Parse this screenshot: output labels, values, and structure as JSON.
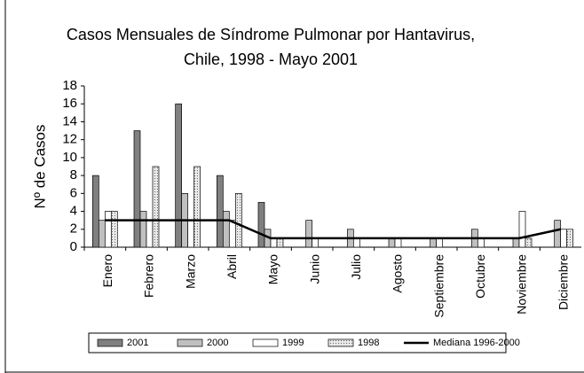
{
  "chart_data": {
    "type": "bar",
    "title": [
      "Casos Mensuales  de Síndrome Pulmonar por Hantavirus,",
      "Chile, 1998 - Mayo 2001"
    ],
    "y_label": "Nº de Casos",
    "categories": [
      "Enero",
      "Febrero",
      "Marzo",
      "Abril",
      "Mayo",
      "Junio",
      "Julio",
      "Agosto",
      "Septiembre",
      "Octubre",
      "Noviembre",
      "Diciembre"
    ],
    "series": [
      {
        "name": "2001",
        "color": "#808080",
        "values": [
          8,
          13,
          16,
          8,
          5,
          null,
          null,
          null,
          null,
          null,
          null,
          null
        ]
      },
      {
        "name": "2000",
        "color": "#c0c0c0",
        "values": [
          3,
          4,
          6,
          4,
          2,
          3,
          2,
          1,
          1,
          2,
          1,
          3
        ]
      },
      {
        "name": "1999",
        "color": "#ffffff",
        "values": [
          4,
          3,
          3,
          3,
          1,
          1,
          1,
          1,
          1,
          1,
          4,
          2
        ]
      },
      {
        "name": "1998",
        "color": "#e8e8e8",
        "values": [
          4,
          9,
          9,
          6,
          1,
          0,
          0,
          0,
          0,
          0,
          1,
          2
        ]
      },
      {
        "name": "Mediana 1996-2000",
        "type": "line",
        "color": "#000000",
        "values": [
          3,
          3,
          3,
          3,
          1,
          1,
          1,
          1,
          1,
          1,
          1,
          2
        ]
      }
    ],
    "ylim": [
      0,
      18
    ],
    "yticks": [
      0,
      2,
      4,
      6,
      8,
      10,
      12,
      14,
      16,
      18
    ]
  }
}
